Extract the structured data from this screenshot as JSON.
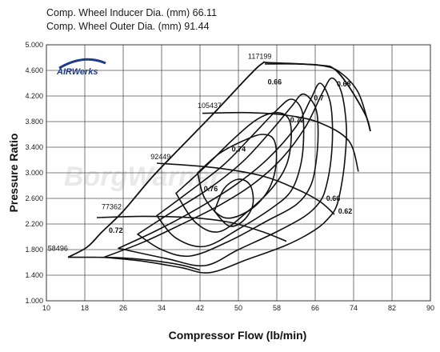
{
  "header": {
    "line1": "Comp. Wheel Inducer Dia. (mm) 66.11",
    "line2": "Comp. Wheel Outer Dia. (mm) 91.44"
  },
  "logo": {
    "text": "AIRWerks",
    "color": "#1f3c88"
  },
  "watermark": {
    "text": "BorgWarner"
  },
  "chart_data": {
    "type": "line",
    "title": "",
    "xlabel": "Compressor Flow (lb/min)",
    "ylabel": "Pressure Ratio",
    "xlim": [
      10,
      90
    ],
    "ylim": [
      1.0,
      5.0
    ],
    "x_ticks": [
      10,
      18,
      26,
      34,
      42,
      50,
      58,
      66,
      74,
      82,
      90
    ],
    "y_ticks": [
      1.0,
      1.4,
      1.8,
      2.2,
      2.6,
      3.0,
      3.4,
      3.8,
      4.2,
      4.6,
      5.0
    ],
    "x_tick_labels": [
      "10",
      "18",
      "26",
      "34",
      "42",
      "50",
      "58",
      "66",
      "74",
      "82",
      "90"
    ],
    "y_tick_labels": [
      "1.000",
      "1.400",
      "1.800",
      "2.200",
      "2.600",
      "3.000",
      "3.400",
      "3.800",
      "4.200",
      "4.600",
      "5.000"
    ],
    "grid": true,
    "surge_line": [
      [
        14.5,
        1.68
      ],
      [
        18.5,
        1.84
      ],
      [
        21.5,
        2.07
      ],
      [
        26,
        2.4
      ],
      [
        32,
        2.93
      ],
      [
        38,
        3.4
      ],
      [
        45,
        3.94
      ],
      [
        52,
        4.5
      ],
      [
        55,
        4.71
      ],
      [
        56.5,
        4.72
      ],
      [
        67,
        4.68
      ],
      [
        70,
        4.62
      ],
      [
        73,
        4.35
      ],
      [
        76.5,
        3.9
      ],
      [
        77.5,
        3.65
      ]
    ],
    "speed_lines": [
      {
        "label": "58496",
        "points": [
          [
            14.5,
            1.68
          ],
          [
            20,
            1.68
          ],
          [
            26,
            1.67
          ],
          [
            32,
            1.63
          ],
          [
            38,
            1.56
          ],
          [
            42,
            1.48
          ]
        ]
      },
      {
        "label": "77362",
        "points": [
          [
            20.5,
            2.3
          ],
          [
            30,
            2.32
          ],
          [
            40,
            2.3
          ],
          [
            48,
            2.23
          ],
          [
            55,
            2.08
          ],
          [
            60,
            1.93
          ]
        ]
      },
      {
        "label": "92449",
        "points": [
          [
            33,
            3.15
          ],
          [
            45,
            3.08
          ],
          [
            55,
            2.95
          ],
          [
            62,
            2.75
          ],
          [
            67,
            2.55
          ],
          [
            70,
            2.35
          ]
        ]
      },
      {
        "label": "105437",
        "points": [
          [
            42.5,
            3.93
          ],
          [
            52,
            3.94
          ],
          [
            60,
            3.9
          ],
          [
            67,
            3.78
          ],
          [
            73,
            3.5
          ],
          [
            75,
            3.02
          ]
        ]
      },
      {
        "label": "117199",
        "points": [
          [
            55.5,
            4.7
          ],
          [
            62,
            4.7
          ],
          [
            67,
            4.68
          ],
          [
            71,
            4.58
          ],
          [
            75,
            4.25
          ],
          [
            77.5,
            3.65
          ]
        ]
      }
    ],
    "efficiency_islands": [
      {
        "label": "0.62",
        "points": [
          [
            22,
            1.68
          ],
          [
            30,
            1.91
          ],
          [
            38,
            2.19
          ],
          [
            46,
            2.49
          ],
          [
            53,
            2.82
          ],
          [
            59,
            3.22
          ],
          [
            64,
            3.72
          ],
          [
            67.5,
            4.25
          ],
          [
            69.5,
            4.48
          ],
          [
            71.5,
            4.25
          ],
          [
            72.5,
            3.72
          ],
          [
            72.2,
            3.22
          ],
          [
            71.5,
            2.82
          ],
          [
            70.5,
            2.49
          ],
          [
            69,
            2.31
          ],
          [
            66,
            2.11
          ],
          [
            60,
            1.87
          ],
          [
            52,
            1.65
          ],
          [
            44,
            1.44
          ],
          [
            38,
            1.52
          ],
          [
            30,
            1.62
          ],
          [
            22,
            1.68
          ]
        ]
      },
      {
        "label": "0.66",
        "points": [
          [
            25,
            1.82
          ],
          [
            33,
            2.1
          ],
          [
            41,
            2.42
          ],
          [
            49,
            2.79
          ],
          [
            56,
            3.21
          ],
          [
            62,
            3.72
          ],
          [
            65,
            4.14
          ],
          [
            67,
            4.4
          ],
          [
            69,
            4.14
          ],
          [
            69.6,
            3.72
          ],
          [
            69.3,
            3.21
          ],
          [
            68.3,
            2.79
          ],
          [
            67,
            2.55
          ],
          [
            64,
            2.33
          ],
          [
            58,
            2.08
          ],
          [
            50,
            1.8
          ],
          [
            43,
            1.55
          ],
          [
            35,
            1.66
          ],
          [
            25,
            1.82
          ]
        ]
      },
      {
        "label": "0.68",
        "points": [
          [
            29,
            2.04
          ],
          [
            36,
            2.38
          ],
          [
            44,
            2.76
          ],
          [
            51,
            3.18
          ],
          [
            57,
            3.67
          ],
          [
            61,
            4.03
          ],
          [
            63.5,
            4.23
          ],
          [
            66,
            4.03
          ],
          [
            66.6,
            3.67
          ],
          [
            66.2,
            3.18
          ],
          [
            65,
            2.79
          ],
          [
            62,
            2.5
          ],
          [
            56,
            2.25
          ],
          [
            48,
            1.93
          ],
          [
            40,
            1.7
          ],
          [
            34,
            1.8
          ],
          [
            29,
            2.04
          ]
        ]
      },
      {
        "label": "0.7",
        "points": [
          [
            33,
            2.33
          ],
          [
            40,
            2.72
          ],
          [
            47,
            3.13
          ],
          [
            53,
            3.59
          ],
          [
            58,
            3.98
          ],
          [
            61,
            4.15
          ],
          [
            63.2,
            3.98
          ],
          [
            63.6,
            3.59
          ],
          [
            63,
            3.13
          ],
          [
            61,
            2.72
          ],
          [
            57,
            2.45
          ],
          [
            50,
            2.12
          ],
          [
            43,
            1.85
          ],
          [
            37,
            1.98
          ],
          [
            33,
            2.33
          ]
        ]
      },
      {
        "label": "0.72",
        "points": [
          [
            37,
            2.68
          ],
          [
            43,
            3.09
          ],
          [
            49,
            3.53
          ],
          [
            54,
            3.84
          ],
          [
            58,
            3.94
          ],
          [
            60.5,
            3.84
          ],
          [
            61,
            3.53
          ],
          [
            60,
            3.12
          ],
          [
            57,
            2.76
          ],
          [
            52,
            2.4
          ],
          [
            46,
            2.08
          ],
          [
            41,
            2.23
          ],
          [
            37,
            2.68
          ]
        ]
      },
      {
        "label": "0.74",
        "points": [
          [
            41.5,
            3.0
          ],
          [
            46,
            3.3
          ],
          [
            51,
            3.5
          ],
          [
            55,
            3.6
          ],
          [
            57.5,
            3.5
          ],
          [
            57.8,
            3.1
          ],
          [
            56,
            2.7
          ],
          [
            52,
            2.4
          ],
          [
            47,
            2.3
          ],
          [
            43,
            2.6
          ],
          [
            41.5,
            3.0
          ]
        ]
      },
      {
        "label": "0.76",
        "points": [
          [
            45,
            2.4
          ],
          [
            47,
            2.75
          ],
          [
            50,
            2.9
          ],
          [
            52.5,
            2.8
          ],
          [
            53,
            2.5
          ],
          [
            51,
            2.25
          ],
          [
            48,
            2.17
          ],
          [
            45,
            2.4
          ]
        ]
      }
    ],
    "surge_labels": [
      {
        "text": "58496",
        "x": 10.3,
        "y": 1.78
      },
      {
        "text": "77362",
        "x": 21.5,
        "y": 2.43
      },
      {
        "text": "92449",
        "x": 31.7,
        "y": 3.21
      },
      {
        "text": "105437",
        "x": 41.5,
        "y": 4.01
      },
      {
        "text": "117199",
        "x": 52,
        "y": 4.78
      }
    ],
    "efficiency_labels": [
      {
        "text": "0.72",
        "x": 23,
        "y": 2.06
      },
      {
        "text": "0.76",
        "x": 42.8,
        "y": 2.71
      },
      {
        "text": "0.74",
        "x": 48.6,
        "y": 3.33
      },
      {
        "text": "0.72",
        "x": 60.8,
        "y": 3.79
      },
      {
        "text": "0.7",
        "x": 65.7,
        "y": 4.13
      },
      {
        "text": "0.68",
        "x": 70.5,
        "y": 4.35
      },
      {
        "text": "0.66",
        "x": 56.1,
        "y": 4.38
      },
      {
        "text": "0.66",
        "x": 68.3,
        "y": 2.56
      },
      {
        "text": "0.62",
        "x": 70.8,
        "y": 2.36
      }
    ]
  }
}
